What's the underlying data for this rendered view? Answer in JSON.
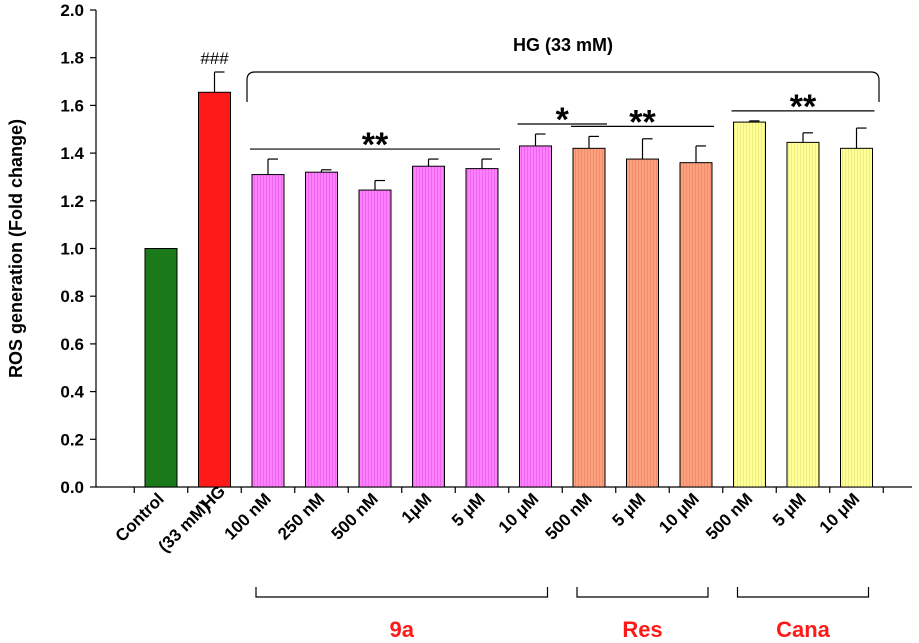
{
  "chart_data": {
    "type": "bar",
    "ylabel": "ROS generation (Fold change)",
    "ylim": [
      0,
      2.0
    ],
    "yticks": [
      "0.0",
      "0.2",
      "0.4",
      "0.6",
      "0.8",
      "1.0",
      "1.2",
      "1.4",
      "1.6",
      "1.8",
      "2.0"
    ],
    "bracket_label": "HG (33 mM)",
    "categories": [
      {
        "label": [
          "Control"
        ],
        "value": 1.0,
        "error": 0.0,
        "color": "#1a7a1a"
      },
      {
        "label": [
          "HG",
          "(33 mM)"
        ],
        "value": 1.655,
        "error": 0.085,
        "color": "#ff1a1a",
        "annotation": "###"
      },
      {
        "label": [
          "100 nM"
        ],
        "value": 1.31,
        "error": 0.065,
        "color": "#ff80ff"
      },
      {
        "label": [
          "250 nM"
        ],
        "value": 1.32,
        "error": 0.01,
        "color": "#ff80ff"
      },
      {
        "label": [
          "500 nM"
        ],
        "value": 1.245,
        "error": 0.04,
        "color": "#ff80ff"
      },
      {
        "label": [
          "1μM"
        ],
        "value": 1.345,
        "error": 0.03,
        "color": "#ff80ff"
      },
      {
        "label": [
          "5 μM"
        ],
        "value": 1.335,
        "error": 0.04,
        "color": "#ff80ff"
      },
      {
        "label": [
          "10 μM"
        ],
        "value": 1.43,
        "error": 0.05,
        "color": "#ff80ff"
      },
      {
        "label": [
          "500 nM"
        ],
        "value": 1.42,
        "error": 0.05,
        "color": "#fca07e"
      },
      {
        "label": [
          "5 μM"
        ],
        "value": 1.375,
        "error": 0.085,
        "color": "#fca07e"
      },
      {
        "label": [
          "10 μM"
        ],
        "value": 1.36,
        "error": 0.07,
        "color": "#fca07e"
      },
      {
        "label": [
          "500 nM"
        ],
        "value": 1.53,
        "error": 0.005,
        "color": "#ffff99"
      },
      {
        "label": [
          "5 μM"
        ],
        "value": 1.445,
        "error": 0.04,
        "color": "#ffff99"
      },
      {
        "label": [
          "10 μM"
        ],
        "value": 1.42,
        "error": 0.085,
        "color": "#ffff99"
      }
    ],
    "significance": [
      {
        "label": "**",
        "from": 2,
        "to": 6
      },
      {
        "label": "*",
        "from": 7,
        "to": 8
      },
      {
        "label": "**",
        "from": 8,
        "to": 10
      },
      {
        "label": "**",
        "from": 11,
        "to": 13
      }
    ],
    "groups": [
      {
        "label": "9a",
        "from": 2,
        "to": 7,
        "color": "#ff1a1a"
      },
      {
        "label": "Res",
        "from": 8,
        "to": 10,
        "color": "#ff1a1a"
      },
      {
        "label": "Cana",
        "from": 11,
        "to": 13,
        "color": "#ff1a1a"
      }
    ]
  }
}
